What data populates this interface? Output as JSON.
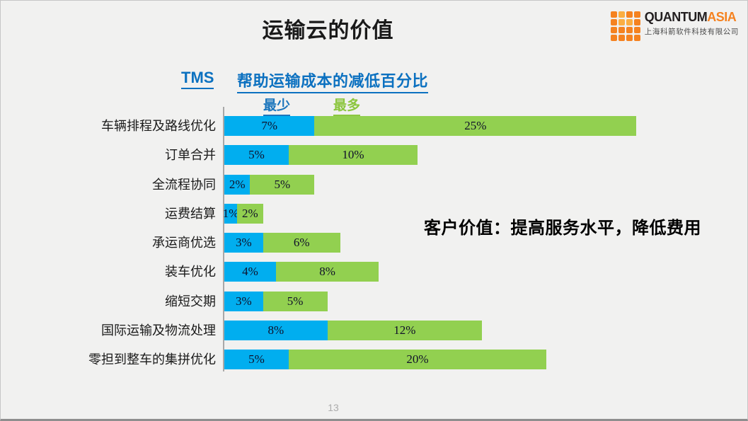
{
  "slide": {
    "title": "运输云的价值",
    "page_number": "13",
    "background_color": "#F1F1F0"
  },
  "logo": {
    "brand": {
      "primary_text": "QUANTUM",
      "secondary_text": "ASIA",
      "primary_color": "#231F20",
      "secondary_color": "#F58220"
    },
    "company_name": "上海科箭软件科技有限公司",
    "dot_colors": [
      "#F58220",
      "#FBAE42",
      "#F58220",
      "#F58220",
      "#F58220",
      "#FBAE42",
      "#FBAE42",
      "#F58220",
      "#F58220",
      "#F58220",
      "#F58220",
      "#F58220",
      "#F58220",
      "#F58220",
      "#F58220",
      "#F58220"
    ]
  },
  "header": {
    "tms_label": "TMS",
    "subtitle": "帮助运输成本的减低百分比",
    "color": "#0C71C0"
  },
  "callout": {
    "text": "客户价值：提高服务水平，降低费用"
  },
  "chart_data": {
    "type": "bar",
    "orientation": "horizontal",
    "stacked": true,
    "title": "TMS 帮助运输成本的减低百分比",
    "categories": [
      "车辆排程及路线优化",
      "订单合并",
      "全流程协同",
      "运费结算",
      "承运商优选",
      "装车优化",
      "缩短交期",
      "国际运输及物流处理",
      "零担到整车的集拼优化"
    ],
    "series": [
      {
        "name": "最少",
        "color": "#01AEEF",
        "label_color": "#1B75BC",
        "values": [
          7,
          5,
          2,
          1,
          3,
          4,
          3,
          8,
          5
        ]
      },
      {
        "name": "最多",
        "color": "#92D050",
        "label_color": "#8CC63F",
        "values": [
          25,
          10,
          5,
          2,
          6,
          8,
          5,
          12,
          20
        ]
      }
    ],
    "unit": "%",
    "xlim": [
      0,
      32
    ],
    "legend_position": "top",
    "grid": false,
    "axis_color": "#A8A8A8"
  }
}
